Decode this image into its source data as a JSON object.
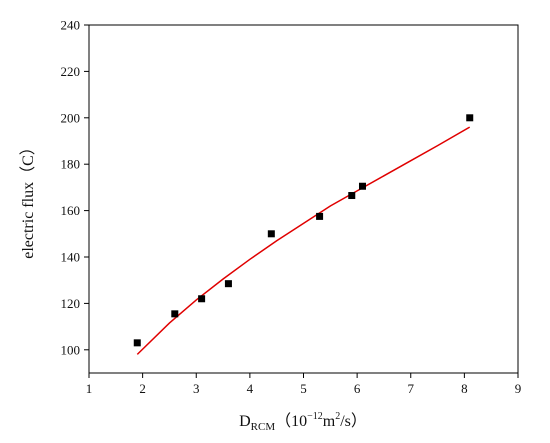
{
  "chart_data": {
    "type": "scatter",
    "title": "",
    "xlabel": {
      "main": "D",
      "sub": "RCM",
      "paren_open": "（",
      "base": "10",
      "exp": "−12",
      "unit": "m",
      "unit_exp": "2",
      "tail": "/s）"
    },
    "ylabel": "electric flux（C）",
    "xlim": [
      1,
      9
    ],
    "ylim": [
      90,
      240
    ],
    "xticks": [
      1,
      2,
      3,
      4,
      5,
      6,
      7,
      8,
      9
    ],
    "yticks": [
      100,
      120,
      140,
      160,
      180,
      200,
      220,
      240
    ],
    "grid": false,
    "legend": "none",
    "series": [
      {
        "kind": "points",
        "marker": "square",
        "color": "#000000",
        "x": [
          1.9,
          2.6,
          3.1,
          3.6,
          4.4,
          5.3,
          5.9,
          6.1,
          8.1
        ],
        "y": [
          103,
          115.5,
          122,
          128.5,
          150,
          157.5,
          166.5,
          170.5,
          200
        ]
      },
      {
        "kind": "fit",
        "color": "#e00000",
        "x": [
          1.9,
          2.5,
          3.0,
          3.5,
          4.0,
          4.5,
          5.0,
          5.5,
          6.0,
          6.5,
          7.0,
          7.5,
          8.1
        ],
        "y": [
          98,
          111.5,
          121.5,
          130.5,
          139,
          147,
          154.5,
          162,
          168.5,
          175,
          181.5,
          188,
          196
        ]
      }
    ]
  }
}
